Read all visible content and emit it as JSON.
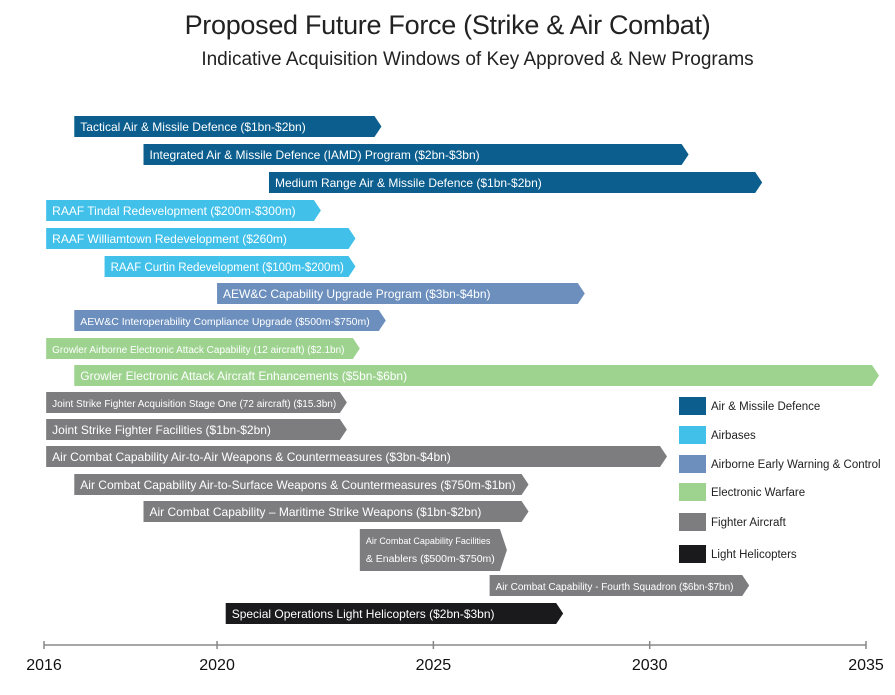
{
  "title": "Proposed Future Force (Strike & Air Combat)",
  "subtitle": "Indicative Acquisition Windows of Key Approved & New Programs",
  "chart_data": {
    "type": "bar",
    "orientation": "horizontal-range",
    "xlim": [
      2016,
      2035
    ],
    "ticks": [
      2016,
      2020,
      2025,
      2030,
      2035
    ],
    "categories_legend": [
      {
        "name": "Air & Missile Defence",
        "color": "#0b5e8e"
      },
      {
        "name": "Airbases",
        "color": "#41c0ea"
      },
      {
        "name": "Airborne Early Warning & Control",
        "color": "#6c8fbd"
      },
      {
        "name": "Electronic Warfare",
        "color": "#9dd38f"
      },
      {
        "name": "Fighter Aircraft",
        "color": "#7d7d7f"
      },
      {
        "name": "Light Helicopters",
        "color": "#1a1a1d"
      }
    ],
    "bars": [
      {
        "label": "Tactical Air & Missile Defence ($1bn-$2bn)",
        "category": "Air & Missile Defence",
        "start": 2016.7,
        "end": 2023.8
      },
      {
        "label": "Integrated Air & Missile Defence (IAMD) Program ($2bn-$3bn)",
        "category": "Air & Missile Defence",
        "start": 2018.3,
        "end": 2030.9
      },
      {
        "label": "Medium Range Air & Missile Defence ($1bn-$2bn)",
        "category": "Air & Missile Defence",
        "start": 2021.2,
        "end": 2032.6
      },
      {
        "label": "RAAF Tindal Redevelopment ($200m-$300m)",
        "category": "Airbases",
        "start": 2016.05,
        "end": 2022.4
      },
      {
        "label": "RAAF Williamtown Redevelopment ($260m)",
        "category": "Airbases",
        "start": 2016.05,
        "end": 2023.2
      },
      {
        "label": "RAAF Curtin Redevelopment ($100m-$200m)",
        "category": "Airbases",
        "start": 2017.4,
        "end": 2023.2
      },
      {
        "label": "AEW&C Capability Upgrade Program ($3bn-$4bn)",
        "category": "Airborne Early Warning & Control",
        "start": 2020.0,
        "end": 2028.5
      },
      {
        "label": "AEW&C Interoperability Compliance Upgrade ($500m-$750m)",
        "category": "Airborne Early Warning & Control",
        "start": 2016.7,
        "end": 2023.9
      },
      {
        "label": "Growler Airborne Electronic Attack Capability (12 aircraft) ($2.1bn)",
        "category": "Electronic Warfare",
        "start": 2016.05,
        "end": 2023.3
      },
      {
        "label": "Growler Electronic Attack Aircraft Enhancements ($5bn-$6bn)",
        "category": "Electronic Warfare",
        "start": 2016.7,
        "end": 2035.3
      },
      {
        "label": "Joint Strike Fighter Acquisition Stage One (72 aircraft) ($15.3bn)",
        "category": "Fighter Aircraft",
        "start": 2016.05,
        "end": 2023.0
      },
      {
        "label": "Joint Strike Fighter Facilities ($1bn-$2bn)",
        "category": "Fighter Aircraft",
        "start": 2016.05,
        "end": 2023.0
      },
      {
        "label": "Air Combat Capability Air-to-Air Weapons & Countermeasures ($3bn-$4bn)",
        "category": "Fighter Aircraft",
        "start": 2016.05,
        "end": 2030.4
      },
      {
        "label": "Air Combat Capability Air-to-Surface Weapons & Countermeasures ($750m-$1bn)",
        "category": "Fighter Aircraft",
        "start": 2016.7,
        "end": 2027.2
      },
      {
        "label": "Air Combat Capability – Maritime Strike Weapons ($1bn-$2bn)",
        "category": "Fighter Aircraft",
        "start": 2018.3,
        "end": 2027.2
      },
      {
        "label": [
          "Air Combat Capability Facilities",
          "& Enablers ($500m-$750m)"
        ],
        "category": "Fighter Aircraft",
        "start": 2023.3,
        "end": 2026.7
      },
      {
        "label": "Air Combat Capability - Fourth Squadron ($6bn-$7bn)",
        "category": "Fighter Aircraft",
        "start": 2026.3,
        "end": 2032.3
      },
      {
        "label": "Special Operations Light Helicopters ($2bn-$3bn)",
        "category": "Light Helicopters",
        "start": 2020.2,
        "end": 2028.0
      }
    ]
  }
}
